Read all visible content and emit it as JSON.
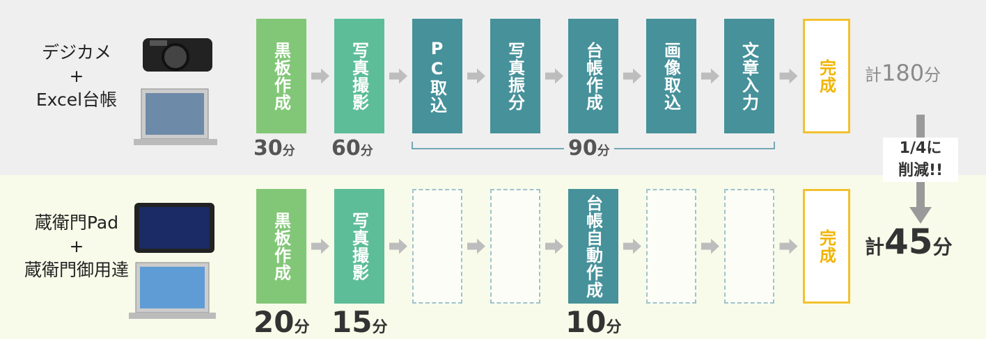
{
  "rows": [
    {
      "label_lines": [
        "デジカメ",
        "+",
        "Excel台帳"
      ],
      "steps": [
        {
          "label": "黒板作成",
          "style": "light-green",
          "time": {
            "number": "30",
            "unit": "分"
          }
        },
        {
          "label": "写真撮影",
          "style": "green",
          "time": {
            "number": "60",
            "unit": "分"
          }
        },
        {
          "label": "PC取込",
          "style": "teal"
        },
        {
          "label": "写真振分",
          "style": "teal"
        },
        {
          "label": "台帳作成",
          "style": "teal"
        },
        {
          "label": "画像取込",
          "style": "teal"
        },
        {
          "label": "文章入力",
          "style": "teal"
        },
        {
          "label": "完成",
          "style": "done"
        }
      ],
      "span_time": {
        "number": "90",
        "unit": "分"
      },
      "total": {
        "prefix": "計",
        "number": "180",
        "unit": "分"
      }
    },
    {
      "label_lines": [
        "蔵衛門Pad",
        "+",
        "蔵衛門御用達"
      ],
      "steps": [
        {
          "label": "黒板作成",
          "style": "light-green",
          "time": {
            "number": "20",
            "unit": "分"
          }
        },
        {
          "label": "写真撮影",
          "style": "green",
          "time": {
            "number": "15",
            "unit": "分"
          }
        },
        null,
        null,
        {
          "label": "台帳自動作成",
          "style": "teal",
          "time": {
            "number": "10",
            "unit": "分"
          }
        },
        null,
        null,
        {
          "label": "完成",
          "style": "done"
        }
      ],
      "total": {
        "prefix": "計",
        "number": "45",
        "unit": "分"
      }
    }
  ],
  "reduction": [
    "1/4に",
    "削減!!"
  ]
}
